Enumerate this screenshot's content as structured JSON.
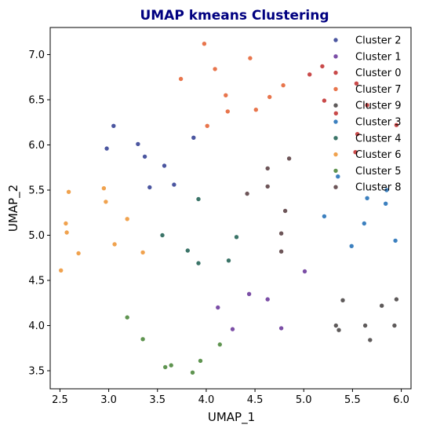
{
  "chart_data": {
    "type": "scatter",
    "title": "UMAP kmeans Clustering",
    "title_color": "#000080",
    "xlabel": "UMAP_1",
    "ylabel": "UMAP_2",
    "xlim": [
      2.4,
      6.1
    ],
    "ylim": [
      3.3,
      7.3
    ],
    "xticks": [
      "2.5",
      "3.0",
      "3.5",
      "4.0",
      "4.5",
      "5.0",
      "5.5",
      "6.0"
    ],
    "yticks": [
      "3.5",
      "4.0",
      "4.5",
      "5.0",
      "5.5",
      "6.0",
      "6.5",
      "7.0"
    ],
    "grid": false,
    "legend_position": "top-right",
    "series": [
      {
        "name": "Cluster 2",
        "color": "#4b56a0",
        "points": [
          [
            2.98,
            5.96
          ],
          [
            3.05,
            6.21
          ],
          [
            3.3,
            6.01
          ],
          [
            3.37,
            5.87
          ],
          [
            3.42,
            5.53
          ],
          [
            3.57,
            5.77
          ],
          [
            3.67,
            5.56
          ],
          [
            3.87,
            6.08
          ]
        ]
      },
      {
        "name": "Cluster 1",
        "color": "#7b4ea6",
        "points": [
          [
            4.12,
            4.2
          ],
          [
            4.27,
            3.96
          ],
          [
            4.44,
            4.35
          ],
          [
            4.63,
            4.29
          ],
          [
            4.77,
            3.97
          ],
          [
            5.01,
            4.6
          ]
        ]
      },
      {
        "name": "Cluster 0",
        "color": "#c94a4a",
        "points": [
          [
            5.06,
            6.78
          ],
          [
            5.19,
            6.87
          ],
          [
            5.21,
            6.49
          ],
          [
            5.33,
            6.35
          ],
          [
            5.53,
            5.92
          ],
          [
            5.54,
            6.68
          ],
          [
            5.55,
            6.12
          ],
          [
            5.65,
            6.44
          ],
          [
            5.95,
            6.22
          ]
        ]
      },
      {
        "name": "Cluster 7",
        "color": "#e8754c",
        "points": [
          [
            3.74,
            6.73
          ],
          [
            3.98,
            7.12
          ],
          [
            4.01,
            6.21
          ],
          [
            4.09,
            6.84
          ],
          [
            4.2,
            6.55
          ],
          [
            4.22,
            6.37
          ],
          [
            4.45,
            6.96
          ],
          [
            4.51,
            6.39
          ],
          [
            4.65,
            6.53
          ],
          [
            4.79,
            6.66
          ]
        ]
      },
      {
        "name": "Cluster 9",
        "color": "#5e5a5a",
        "points": [
          [
            5.33,
            4.0
          ],
          [
            5.36,
            3.95
          ],
          [
            5.4,
            4.28
          ],
          [
            5.63,
            4.0
          ],
          [
            5.68,
            3.84
          ],
          [
            5.8,
            4.22
          ],
          [
            5.93,
            4.0
          ],
          [
            5.95,
            4.29
          ]
        ]
      },
      {
        "name": "Cluster 3",
        "color": "#3c80bf",
        "points": [
          [
            5.21,
            5.21
          ],
          [
            5.35,
            5.65
          ],
          [
            5.49,
            4.88
          ],
          [
            5.62,
            5.13
          ],
          [
            5.65,
            5.41
          ],
          [
            5.84,
            5.35
          ],
          [
            5.85,
            5.5
          ],
          [
            5.94,
            4.94
          ]
        ]
      },
      {
        "name": "Cluster 4",
        "color": "#3b7468",
        "points": [
          [
            3.55,
            5.0
          ],
          [
            3.81,
            4.83
          ],
          [
            3.92,
            4.69
          ],
          [
            3.92,
            5.4
          ],
          [
            4.23,
            4.72
          ],
          [
            4.31,
            4.98
          ]
        ]
      },
      {
        "name": "Cluster 6",
        "color": "#f0a24e",
        "points": [
          [
            2.51,
            4.61
          ],
          [
            2.56,
            5.13
          ],
          [
            2.57,
            5.03
          ],
          [
            2.59,
            5.48
          ],
          [
            2.69,
            4.8
          ],
          [
            2.95,
            5.52
          ],
          [
            2.97,
            5.37
          ],
          [
            3.06,
            4.9
          ],
          [
            3.19,
            5.18
          ],
          [
            3.35,
            4.81
          ]
        ]
      },
      {
        "name": "Cluster 5",
        "color": "#5f9450",
        "points": [
          [
            3.19,
            4.09
          ],
          [
            3.35,
            3.85
          ],
          [
            3.58,
            3.54
          ],
          [
            3.64,
            3.56
          ],
          [
            3.86,
            3.48
          ],
          [
            3.94,
            3.61
          ],
          [
            4.14,
            3.79
          ]
        ]
      },
      {
        "name": "Cluster 8",
        "color": "#6d5558",
        "points": [
          [
            4.42,
            5.46
          ],
          [
            4.63,
            5.74
          ],
          [
            4.63,
            5.54
          ],
          [
            4.77,
            4.82
          ],
          [
            4.77,
            5.02
          ],
          [
            4.81,
            5.27
          ],
          [
            4.85,
            5.85
          ]
        ]
      }
    ]
  }
}
